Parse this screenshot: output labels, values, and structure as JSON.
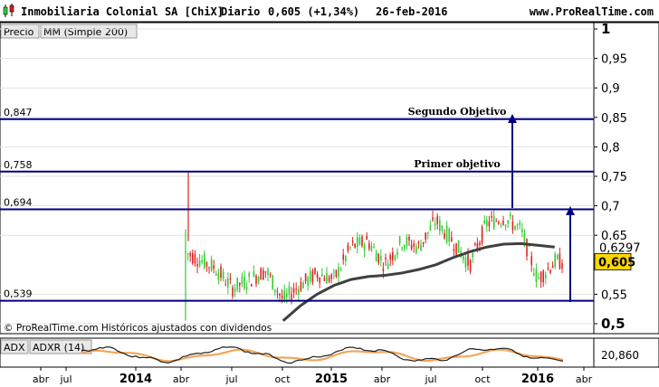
{
  "header": {
    "instrument": "Inmobiliaria Colonial SA [ChiX]",
    "period": "Diario",
    "last_change": "0,605 (+1,34%)",
    "date": "26-feb-2016",
    "site": "www.ProRealTime.com"
  },
  "legend": {
    "price": "Precio",
    "ma": "MM (Simple 200)"
  },
  "watermark": "© ProRealTime.com Históricos ajustados con dividendos",
  "colors": {
    "up": "#33cc33",
    "down": "#dd2222",
    "level": "#000080",
    "ma": "#404040",
    "adx": "#202020",
    "adxr": "#f2a65a",
    "price_badge": "#ffd700"
  },
  "chart_data": [
    {
      "type": "candlestick",
      "title": "Inmobiliaria Colonial SA [ChiX]",
      "ylim": [
        0.5,
        1.0
      ],
      "y_ticks": [
        {
          "v": 1.0,
          "label": "1"
        },
        {
          "v": 0.95,
          "label": "0,95"
        },
        {
          "v": 0.9,
          "label": "0,9"
        },
        {
          "v": 0.85,
          "label": "0,85"
        },
        {
          "v": 0.8,
          "label": "0,8"
        },
        {
          "v": 0.75,
          "label": "0,75"
        },
        {
          "v": 0.7,
          "label": "0,7"
        },
        {
          "v": 0.65,
          "label": "0,65"
        },
        {
          "v": 0.55,
          "label": "0,55"
        },
        {
          "v": 0.5,
          "label": "0,5"
        }
      ],
      "current_price": {
        "v": 0.605,
        "label": "0,605"
      },
      "ma_current": {
        "v": 0.6297,
        "label": "0,6297"
      },
      "levels": [
        {
          "v": 0.847,
          "label": "0,847",
          "note": "Segundo Objetivo"
        },
        {
          "v": 0.758,
          "label": "0,758",
          "note": "Primer objetivo"
        },
        {
          "v": 0.694,
          "label": "0,694",
          "note": ""
        },
        {
          "v": 0.539,
          "label": "0,539",
          "note": ""
        }
      ],
      "x_ticks": [
        "abr",
        "jul",
        "2014",
        "abr",
        "jul",
        "oct",
        "2015",
        "abr",
        "jul",
        "oct",
        "2016",
        "abr"
      ],
      "ma_points": [
        {
          "x": "oct 2014",
          "y": 0.505
        },
        {
          "x": "nov 2014",
          "y": 0.53
        },
        {
          "x": "dic 2014",
          "y": 0.55
        },
        {
          "x": "ene 2015",
          "y": 0.565
        },
        {
          "x": "feb 2015",
          "y": 0.575
        },
        {
          "x": "mar 2015",
          "y": 0.58
        },
        {
          "x": "abr 2015",
          "y": 0.582
        },
        {
          "x": "may 2015",
          "y": 0.586
        },
        {
          "x": "jun 2015",
          "y": 0.592
        },
        {
          "x": "jul 2015",
          "y": 0.6
        },
        {
          "x": "ago 2015",
          "y": 0.612
        },
        {
          "x": "sep 2015",
          "y": 0.622
        },
        {
          "x": "oct 2015",
          "y": 0.63
        },
        {
          "x": "nov 2015",
          "y": 0.635
        },
        {
          "x": "dic 2015",
          "y": 0.636
        },
        {
          "x": "ene 2016",
          "y": 0.633
        },
        {
          "x": "feb 2016",
          "y": 0.63
        }
      ],
      "price_points": [
        {
          "x": "feb 2014",
          "y": 0.6
        },
        {
          "x": "mar 2014",
          "y": 0.66
        },
        {
          "x": "abr 2014",
          "y": 0.625
        },
        {
          "x": "may 2014",
          "y": 0.61
        },
        {
          "x": "jun 2014",
          "y": 0.595
        },
        {
          "x": "jul 2014",
          "y": 0.56
        },
        {
          "x": "ago 2014",
          "y": 0.575
        },
        {
          "x": "sep 2014",
          "y": 0.59
        },
        {
          "x": "oct 2014",
          "y": 0.54
        },
        {
          "x": "nov 2014",
          "y": 0.565
        },
        {
          "x": "dic 2014",
          "y": 0.585
        },
        {
          "x": "ene 2015",
          "y": 0.575
        },
        {
          "x": "feb 2015",
          "y": 0.63
        },
        {
          "x": "mar 2015",
          "y": 0.64
        },
        {
          "x": "abr 2015",
          "y": 0.6
        },
        {
          "x": "may 2015",
          "y": 0.64
        },
        {
          "x": "jun 2015",
          "y": 0.63
        },
        {
          "x": "jul 2015",
          "y": 0.675
        },
        {
          "x": "ago 2015",
          "y": 0.64
        },
        {
          "x": "sep 2015",
          "y": 0.6
        },
        {
          "x": "oct 2015",
          "y": 0.67
        },
        {
          "x": "nov 2015",
          "y": 0.68
        },
        {
          "x": "dic 2015",
          "y": 0.66
        },
        {
          "x": "ene 2016",
          "y": 0.575
        },
        {
          "x": "feb 2016",
          "y": 0.605
        }
      ]
    },
    {
      "type": "line",
      "title": "ADX ADXR (14)",
      "series_labels": [
        "ADX",
        "ADXR (14)"
      ],
      "current": {
        "v": 20.86,
        "label": "20,860"
      }
    }
  ]
}
